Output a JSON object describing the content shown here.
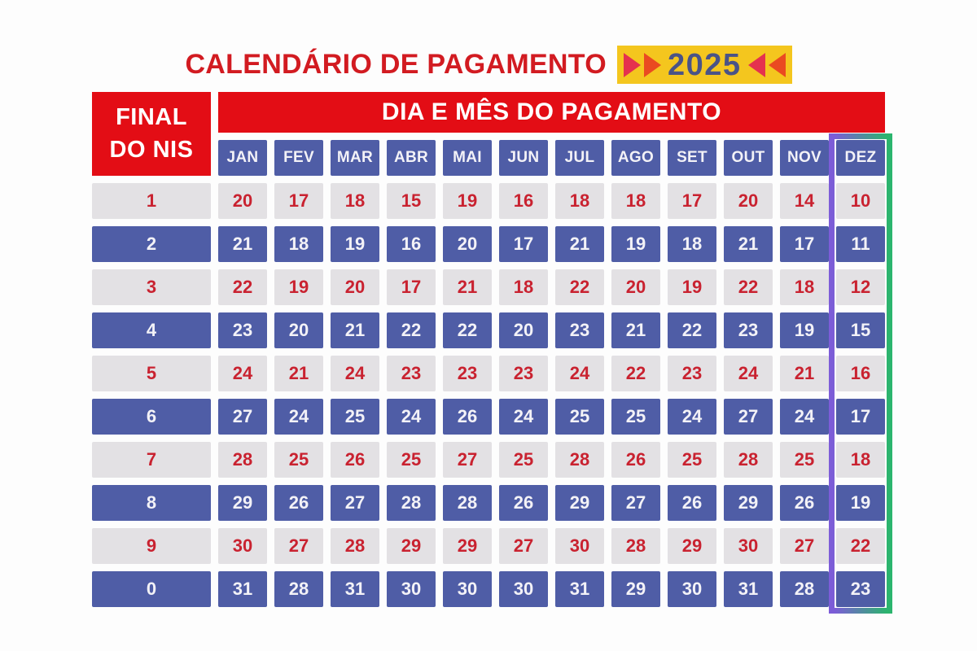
{
  "title": {
    "text": "CALENDÁRIO DE PAGAMENTO",
    "year": "2025"
  },
  "header": {
    "corner_line1": "FINAL",
    "corner_line2": "DO NIS",
    "top": "DIA E MÊS DO PAGAMENTO"
  },
  "highlight": {
    "column": "DEZ"
  },
  "colors": {
    "title_red": "#d21b21",
    "header_red": "#e30d15",
    "cell_blue": "#4f5da6",
    "cell_gray": "#e3e1e4",
    "number_red": "#c92230",
    "number_white": "#f3f2f7",
    "badge_yellow": "#f4c61e",
    "year_navy": "#4a5387",
    "arrow_crimson": "#e5314e",
    "arrow_orange": "#ea4a21",
    "highlight_purple": "#7d5cd8",
    "highlight_green": "#2bb56d"
  },
  "chart_data": {
    "type": "table",
    "title": "CALENDÁRIO DE PAGAMENTO 2025",
    "row_label": "FINAL DO NIS",
    "column_group_label": "DIA E MÊS DO PAGAMENTO",
    "columns": [
      "JAN",
      "FEV",
      "MAR",
      "ABR",
      "MAI",
      "JUN",
      "JUL",
      "AGO",
      "SET",
      "OUT",
      "NOV",
      "DEZ"
    ],
    "row_keys": [
      "1",
      "2",
      "3",
      "4",
      "5",
      "6",
      "7",
      "8",
      "9",
      "0"
    ],
    "values": [
      [
        20,
        17,
        18,
        15,
        19,
        16,
        18,
        18,
        17,
        20,
        14,
        10
      ],
      [
        21,
        18,
        19,
        16,
        20,
        17,
        21,
        19,
        18,
        21,
        17,
        11
      ],
      [
        22,
        19,
        20,
        17,
        21,
        18,
        22,
        20,
        19,
        22,
        18,
        12
      ],
      [
        23,
        20,
        21,
        22,
        22,
        20,
        23,
        21,
        22,
        23,
        19,
        15
      ],
      [
        24,
        21,
        24,
        23,
        23,
        23,
        24,
        22,
        23,
        24,
        21,
        16
      ],
      [
        27,
        24,
        25,
        24,
        26,
        24,
        25,
        25,
        24,
        27,
        24,
        17
      ],
      [
        28,
        25,
        26,
        25,
        27,
        25,
        28,
        26,
        25,
        28,
        25,
        18
      ],
      [
        29,
        26,
        27,
        28,
        28,
        26,
        29,
        27,
        26,
        29,
        26,
        19
      ],
      [
        30,
        27,
        28,
        29,
        29,
        27,
        30,
        28,
        29,
        30,
        27,
        22
      ],
      [
        31,
        28,
        31,
        30,
        30,
        30,
        31,
        29,
        30,
        31,
        28,
        23
      ]
    ]
  }
}
